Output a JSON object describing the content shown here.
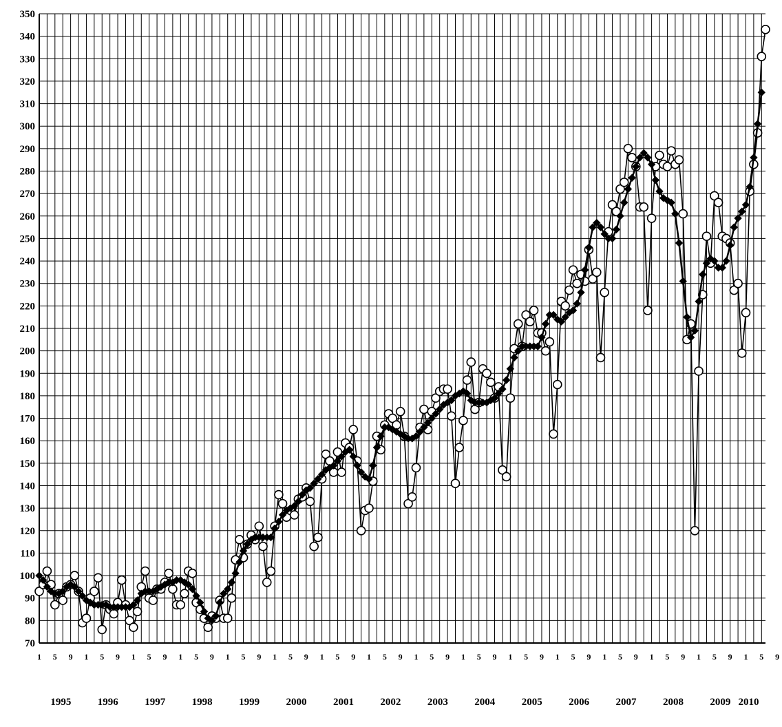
{
  "chart_data": {
    "type": "line",
    "title": "",
    "xlabel": "",
    "ylabel": "",
    "ylim": [
      70,
      350
    ],
    "y_ticks": [
      70,
      80,
      90,
      100,
      110,
      120,
      130,
      140,
      150,
      160,
      170,
      180,
      190,
      200,
      210,
      220,
      230,
      240,
      250,
      260,
      270,
      280,
      290,
      300,
      310,
      320,
      330,
      340,
      350
    ],
    "x_tick_labels": [
      "1",
      "5",
      "9",
      "1",
      "5",
      "9",
      "1",
      "5",
      "9",
      "1",
      "5",
      "9",
      "1",
      "5",
      "9",
      "1",
      "5",
      "9",
      "1",
      "5",
      "9",
      "1",
      "5",
      "9",
      "1",
      "5",
      "9",
      "1",
      "5",
      "9",
      "1",
      "5",
      "9",
      "1",
      "5",
      "9",
      "1",
      "5",
      "9",
      "1",
      "5",
      "9",
      "1",
      "5",
      "9",
      "1",
      "5",
      "9",
      "1",
      "5",
      "9",
      "1",
      "5",
      "9",
      "1",
      "5",
      "9"
    ],
    "year_labels": [
      "1995",
      "1996",
      "1997",
      "1998",
      "1999",
      "2000",
      "2001",
      "2002",
      "2003",
      "2004",
      "2005",
      "2006",
      "2007",
      "2008",
      "2009",
      "2010"
    ],
    "grid": true,
    "legend": "none",
    "series": [
      {
        "marker": "circle",
        "values": [
          93,
          96,
          102,
          96,
          87,
          92,
          89,
          95,
          96,
          100,
          93,
          79,
          81,
          90,
          93,
          99,
          76,
          87,
          85,
          83,
          88,
          98,
          87,
          80,
          77,
          84,
          95,
          102,
          90,
          89,
          94,
          94,
          97,
          101,
          94,
          87,
          87,
          92,
          102,
          101,
          88,
          85,
          81,
          77,
          82,
          81,
          89,
          81,
          81,
          90,
          107,
          116,
          108,
          114,
          118,
          116,
          122,
          113,
          97,
          102,
          122,
          136,
          132,
          126,
          129,
          127,
          134,
          135,
          139,
          133,
          113,
          117,
          143,
          154,
          151,
          146,
          155,
          146,
          159,
          157,
          165,
          151,
          120,
          129,
          130,
          142,
          162,
          156,
          167,
          172,
          170,
          167,
          173,
          162,
          132,
          135,
          148,
          166,
          174,
          165,
          173,
          179,
          182,
          183,
          183,
          171,
          141,
          157,
          169,
          187,
          195,
          174,
          177,
          192,
          190,
          186,
          179,
          184,
          147,
          144,
          179,
          201,
          212,
          202,
          216,
          213,
          218,
          208,
          208,
          200,
          204,
          163,
          185,
          222,
          220,
          227,
          236,
          230,
          234,
          231,
          245,
          232,
          235,
          197,
          226,
          253,
          265,
          262,
          272,
          275,
          290,
          286,
          282,
          264,
          264,
          218,
          259,
          282,
          287,
          283,
          282,
          289,
          283,
          285,
          261,
          205,
          212,
          120,
          191,
          225,
          251,
          239,
          269,
          266,
          251,
          250,
          248,
          227,
          230,
          199,
          217,
          271,
          283,
          297,
          331,
          343
        ]
      },
      {
        "marker": "diamond",
        "values": [
          100,
          98,
          95,
          93,
          92,
          92,
          93,
          95,
          96,
          95,
          93,
          91,
          89,
          88,
          87,
          87,
          87,
          87,
          86,
          86,
          86,
          86,
          86,
          86,
          87,
          89,
          92,
          93,
          93,
          93,
          94,
          95,
          96,
          97,
          97,
          98,
          98,
          97,
          96,
          94,
          91,
          88,
          84,
          81,
          80,
          82,
          88,
          92,
          94,
          97,
          101,
          106,
          111,
          114,
          116,
          117,
          117,
          117,
          117,
          117,
          121,
          124,
          127,
          129,
          130,
          131,
          133,
          136,
          138,
          139,
          141,
          143,
          145,
          147,
          148,
          149,
          151,
          153,
          155,
          156,
          153,
          149,
          146,
          144,
          143,
          149,
          157,
          162,
          166,
          166,
          165,
          164,
          163,
          162,
          161,
          161,
          162,
          164,
          166,
          168,
          170,
          172,
          174,
          176,
          177,
          178,
          180,
          181,
          182,
          181,
          178,
          177,
          177,
          177,
          177,
          178,
          179,
          181,
          183,
          187,
          192,
          197,
          200,
          202,
          202,
          202,
          202,
          202,
          206,
          212,
          216,
          216,
          214,
          213,
          215,
          217,
          218,
          221,
          226,
          236,
          246,
          255,
          257,
          255,
          252,
          250,
          250,
          254,
          260,
          266,
          272,
          277,
          282,
          286,
          288,
          286,
          283,
          276,
          271,
          268,
          267,
          266,
          261,
          248,
          231,
          215,
          206,
          209,
          222,
          234,
          239,
          241,
          240,
          237,
          237,
          240,
          247,
          255,
          259,
          262,
          265,
          273,
          286,
          301,
          315
        ]
      }
    ]
  }
}
